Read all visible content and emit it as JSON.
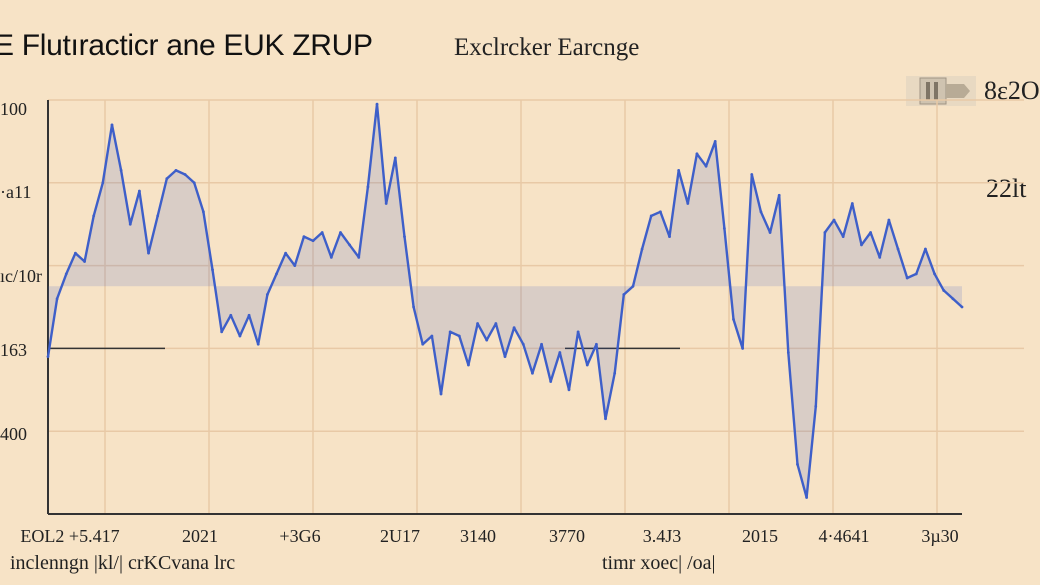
{
  "chart_data": {
    "type": "line",
    "title": "E Flutıracticr ane EUK ZRUP",
    "subtitle": "Exclrcker Earcnge",
    "legend": [
      "8ε2O",
      "22lt"
    ],
    "xlabel": "inclenngn |kl/| crKCvana lrc",
    "xlabel2": "timr xoec| /oa|",
    "ytick_labels": [
      "100",
      "·a11",
      "ıc/10r",
      "163",
      "400"
    ],
    "xtick_labels": [
      "ЕОL2 +5.417",
      "2021",
      "+3G6",
      "2U17",
      "3140",
      "3770",
      "3.4J3",
      "2015",
      "4·4641",
      "3µ30"
    ],
    "grid": true,
    "ylim": [
      0,
      100
    ],
    "reference_level": 40,
    "series": [
      {
        "color": "#3e5fc9",
        "x": [
          0,
          1,
          2,
          3,
          4,
          5,
          6,
          7,
          8,
          9,
          10,
          11,
          12,
          13,
          14,
          15,
          16,
          17,
          18,
          19,
          20,
          21,
          22,
          23,
          24,
          25,
          26,
          27,
          28,
          29,
          30,
          31,
          32,
          33,
          34,
          35,
          36,
          37,
          38,
          39,
          40,
          41,
          42,
          43,
          44,
          45,
          46,
          47,
          48,
          49,
          50,
          51,
          52,
          53,
          54,
          55,
          56,
          57,
          58,
          59,
          60,
          61,
          62,
          63,
          64,
          65,
          66,
          67,
          68,
          69,
          70,
          71,
          72,
          73,
          74,
          75,
          76,
          77,
          78,
          79,
          80,
          81,
          82,
          83,
          84,
          85,
          86,
          87,
          88,
          89,
          90,
          91,
          92,
          93,
          94,
          95,
          96,
          97,
          98,
          99,
          100
        ],
        "values": [
          38,
          52,
          58,
          63,
          61,
          72,
          80,
          94,
          83,
          70,
          78,
          63,
          72,
          81,
          83,
          82,
          80,
          73,
          59,
          44,
          48,
          43,
          48,
          41,
          53,
          58,
          63,
          60,
          67,
          66,
          68,
          62,
          68,
          65,
          62,
          79,
          99,
          75,
          86,
          67,
          50,
          41,
          43,
          29,
          44,
          43,
          36,
          46,
          42,
          46,
          38,
          45,
          41,
          34,
          41,
          32,
          39,
          30,
          44,
          36,
          41,
          23,
          34,
          53,
          55,
          64,
          72,
          73,
          67,
          83,
          75,
          87,
          84,
          90,
          69,
          47,
          40,
          82,
          73,
          68,
          77,
          39,
          12,
          4,
          26,
          68,
          71,
          67,
          75,
          65,
          68,
          62,
          71,
          64,
          57,
          58,
          64,
          58,
          54,
          52,
          50
        ]
      }
    ]
  }
}
